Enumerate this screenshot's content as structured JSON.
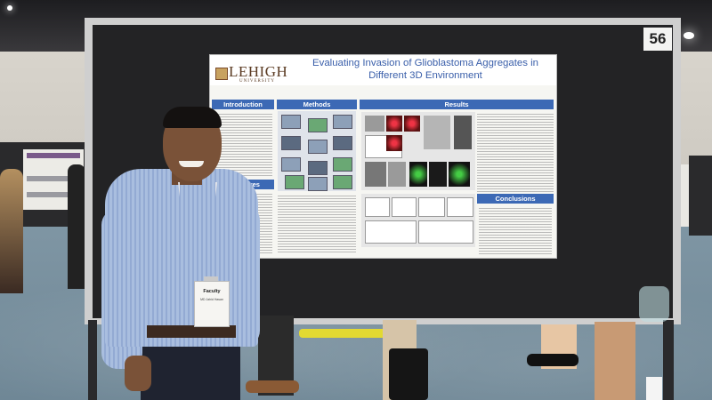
{
  "scene": {
    "board_number": "56",
    "badge": {
      "type": "Faculty",
      "name": "MD Jahid Hasan"
    }
  },
  "poster": {
    "logo": "LEHIGH",
    "logo_sub": "UNIVERSITY",
    "title": "Evaluating Invasion of Glioblastoma Aggregates in Different 3D Environment",
    "sections": {
      "introduction": "Introduction",
      "methods": "Methods",
      "results": "Results",
      "objectives": "Objectives",
      "conclusions": "Conclusions"
    }
  }
}
